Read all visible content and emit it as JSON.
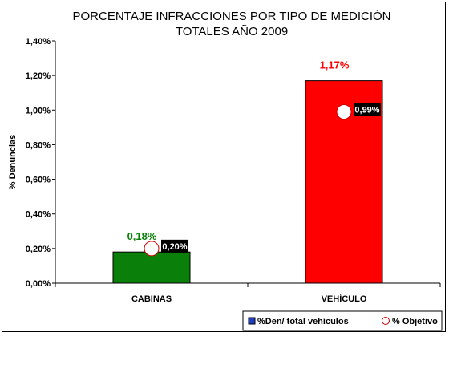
{
  "chart_data": {
    "type": "bar",
    "title": [
      "PORCENTAJE INFRACCIONES POR TIPO DE MEDICIÓN",
      "TOTALES AÑO 2009"
    ],
    "ylabel": "% Denuncias",
    "xlabel": "",
    "categories": [
      "CABINAS",
      "VEHÍCULO"
    ],
    "ylim": [
      0,
      0.014
    ],
    "yticks": [
      0,
      0.002,
      0.004,
      0.006,
      0.008,
      0.01,
      0.012,
      0.014
    ],
    "ytick_labels": [
      "0,00%",
      "0,20%",
      "0,40%",
      "0,60%",
      "0,80%",
      "1,00%",
      "1,20%",
      "1,40%"
    ],
    "grid": false,
    "legend_position": "bottom-right",
    "series": [
      {
        "name": "%Den/ total vehículos",
        "type": "bar",
        "values": [
          0.0018,
          0.0117
        ],
        "labels": [
          "0,18%",
          "1,17%"
        ],
        "colors": [
          "#0a800a",
          "#ff0000"
        ],
        "label_colors": [
          "#0a800a",
          "#ff0000"
        ],
        "legend_color": "#1f3fbf"
      },
      {
        "name": "% Objetivo",
        "type": "marker",
        "values": [
          0.002,
          0.0099
        ],
        "labels": [
          "0,20%",
          "0,99%"
        ],
        "marker_fill": "#ffffff",
        "marker_stroke": "#cc0000"
      }
    ]
  }
}
